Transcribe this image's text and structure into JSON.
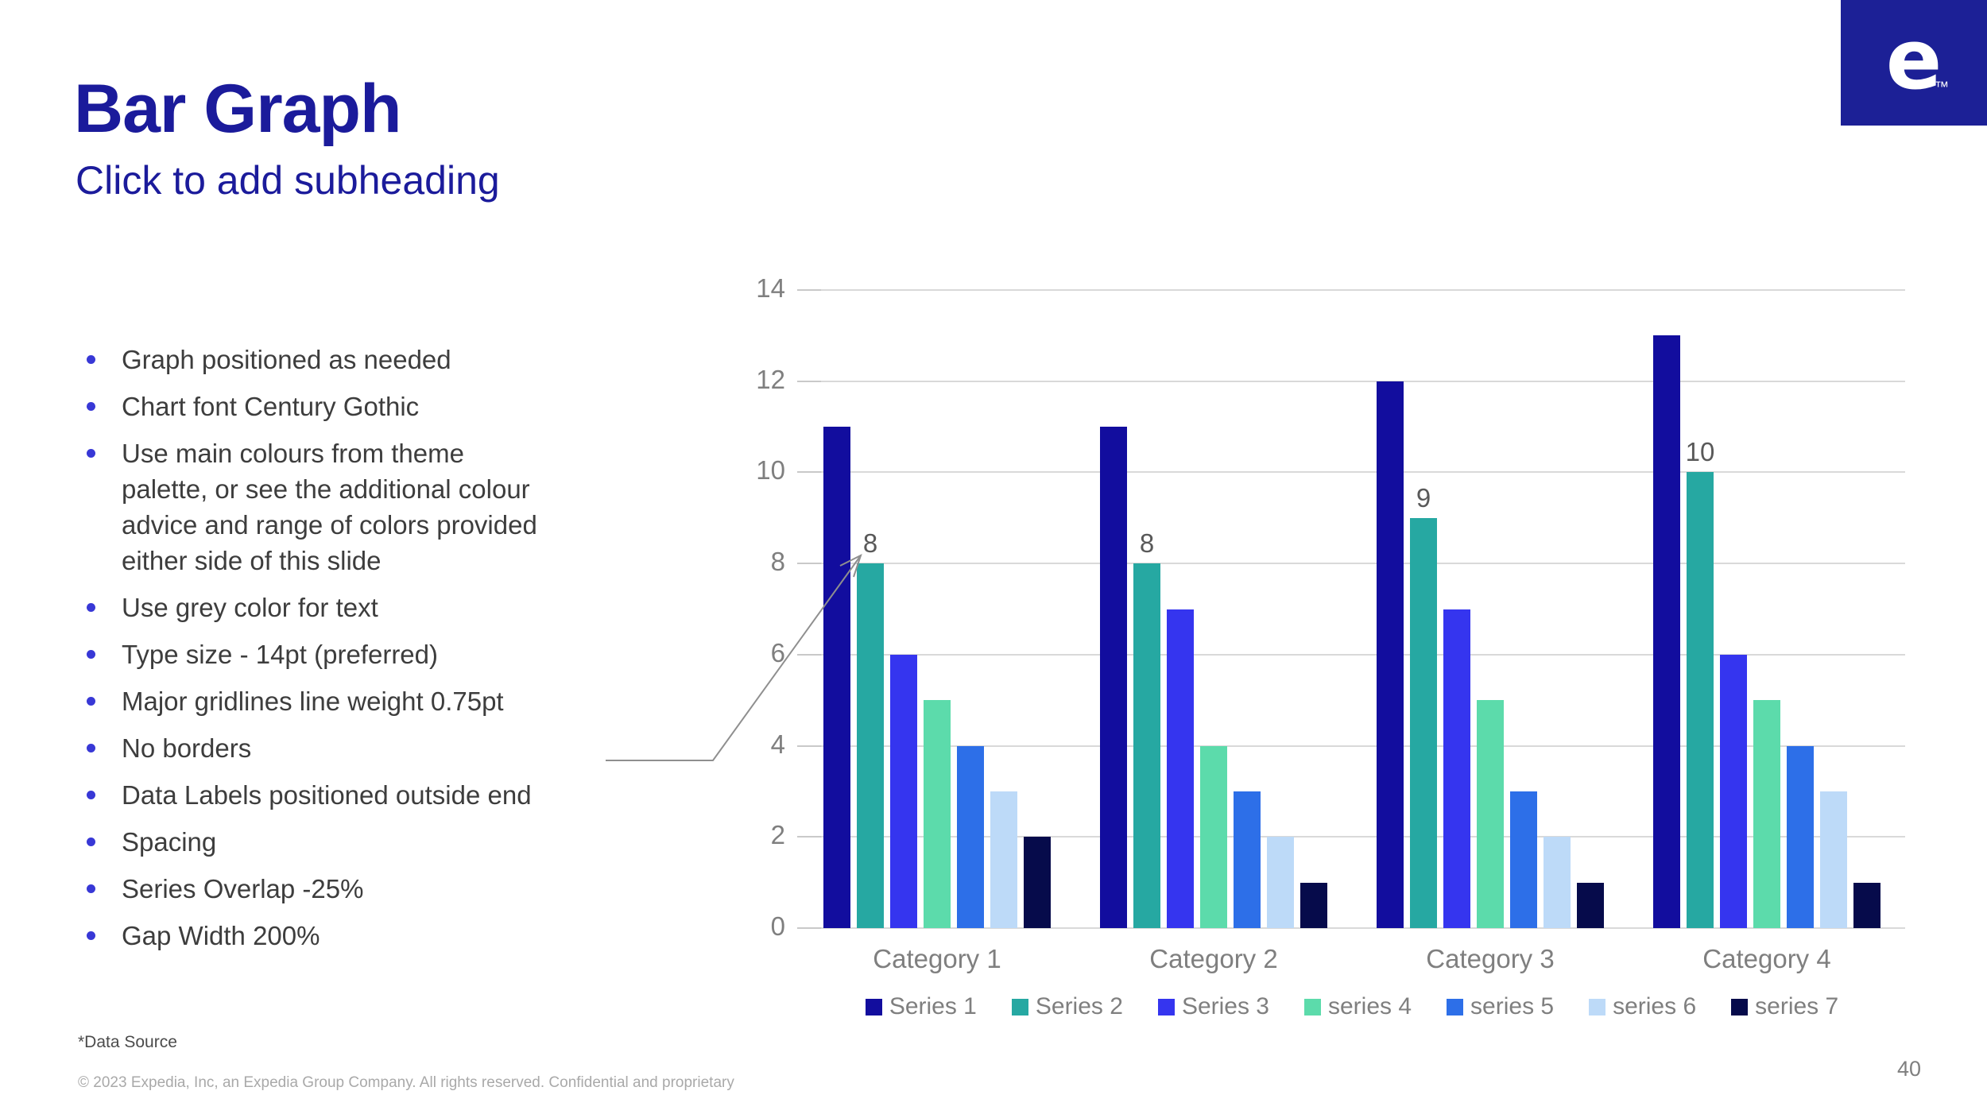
{
  "slide": {
    "title": "Bar Graph",
    "subheading": "Click to add subheading",
    "bullets": [
      "Graph positioned as needed",
      "Chart font Century Gothic",
      "Use main colours from theme palette, or see the additional colour advice and range of colors provided either side of this slide",
      "Use grey color for text",
      "Type size - 14pt (preferred)",
      "Major gridlines line weight 0.75pt",
      "No borders",
      "Data Labels positioned outside end",
      "Spacing",
      "Series Overlap -25%",
      "Gap Width 200%"
    ],
    "footnote": "*Data Source",
    "copyright": "© 2023 Expedia, Inc, an Expedia Group Company. All rights reserved. Confidential and proprietary",
    "page_number": "40",
    "logo": {
      "letter": "e",
      "tm": "™"
    }
  },
  "colors": {
    "title_navy": "#1B1B9B",
    "bullet_dot": "#3838D6",
    "text_dark": "#3D3D3D",
    "label_gray": "#7F7F7F",
    "datalabel_gray": "#595959",
    "gridline": "#D9D9D9",
    "tick": "#C9C9C9",
    "logo_bg": "#1C2096",
    "footnote_gray": "#4B4B4B",
    "copyright_gray": "#A9A9A9",
    "arrow_gray": "#8F8F8F"
  },
  "chart_data": {
    "type": "bar",
    "title": "",
    "xlabel": "",
    "ylabel": "",
    "categories": [
      "Category 1",
      "Category 2",
      "Category 3",
      "Category 4"
    ],
    "series": [
      {
        "name": "Series 1",
        "color": "#120D9E",
        "values": [
          11,
          11,
          12,
          13
        ],
        "labels_shown": false
      },
      {
        "name": "Series 2",
        "color": "#26A8A2",
        "values": [
          8,
          8,
          9,
          10
        ],
        "labels_shown": true
      },
      {
        "name": "Series 3",
        "color": "#3535EF",
        "values": [
          6,
          7,
          7,
          6
        ],
        "labels_shown": false
      },
      {
        "name": "series 4",
        "color": "#5CDBAB",
        "values": [
          5,
          4,
          5,
          5
        ],
        "labels_shown": false
      },
      {
        "name": "series 5",
        "color": "#2D6FE8",
        "values": [
          4,
          3,
          3,
          4
        ],
        "labels_shown": false
      },
      {
        "name": "series 6",
        "color": "#BDDAF8",
        "values": [
          3,
          2,
          2,
          3
        ],
        "labels_shown": false
      },
      {
        "name": "series 7",
        "color": "#060B4B",
        "values": [
          2,
          1,
          1,
          1
        ],
        "labels_shown": false
      }
    ],
    "ylim": [
      0,
      14
    ],
    "ytick_step": 2,
    "grid": true,
    "legend_position": "bottom"
  }
}
